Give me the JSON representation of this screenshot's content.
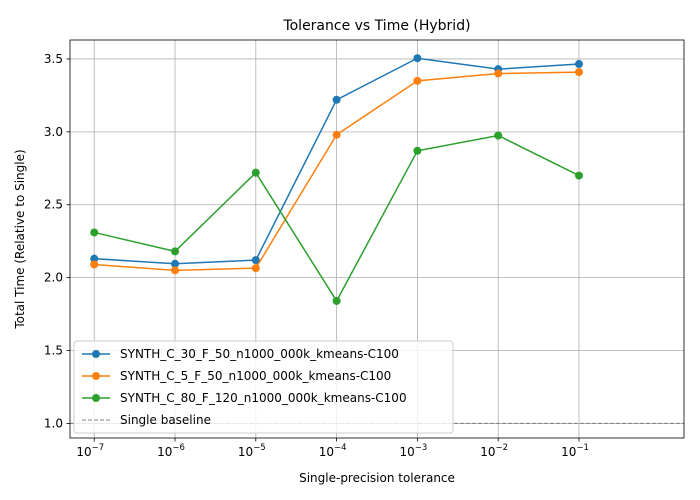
{
  "chart_data": {
    "type": "line",
    "title": "Tolerance vs Time (Hybrid)",
    "xlabel": "Single-precision tolerance",
    "ylabel": "Total Time (Relative to Single)",
    "xscale": "log",
    "x": [
      1e-07,
      1e-06,
      1e-05,
      0.0001,
      0.001,
      0.01,
      0.1
    ],
    "xticks": [
      {
        "base": "10",
        "exp": "−7"
      },
      {
        "base": "10",
        "exp": "−6"
      },
      {
        "base": "10",
        "exp": "−5"
      },
      {
        "base": "10",
        "exp": "−4"
      },
      {
        "base": "10",
        "exp": "−3"
      },
      {
        "base": "10",
        "exp": "−2"
      },
      {
        "base": "10",
        "exp": "−1"
      }
    ],
    "yticks": [
      "1.0",
      "1.5",
      "2.0",
      "2.5",
      "3.0",
      "3.5"
    ],
    "ylim": [
      0.9,
      3.63
    ],
    "grid": true,
    "legend_position": "lower-left",
    "series": [
      {
        "name": "SYNTH_C_30_F_50_n1000_000k_kmeans-C100",
        "color": "#1f77b4",
        "values": [
          2.13,
          2.095,
          2.12,
          3.22,
          3.505,
          3.43,
          3.465
        ]
      },
      {
        "name": "SYNTH_C_5_F_50_n1000_000k_kmeans-C100",
        "color": "#ff7f0e",
        "values": [
          2.09,
          2.05,
          2.065,
          2.98,
          3.35,
          3.4,
          3.41
        ]
      },
      {
        "name": "SYNTH_C_80_F_120_n1000_000k_kmeans-C100",
        "color": "#2ca02c",
        "values": [
          2.31,
          2.18,
          2.72,
          1.84,
          2.87,
          2.975,
          2.7
        ]
      }
    ],
    "baseline": {
      "name": "Single baseline",
      "value": 1.0,
      "color": "#808080"
    }
  }
}
